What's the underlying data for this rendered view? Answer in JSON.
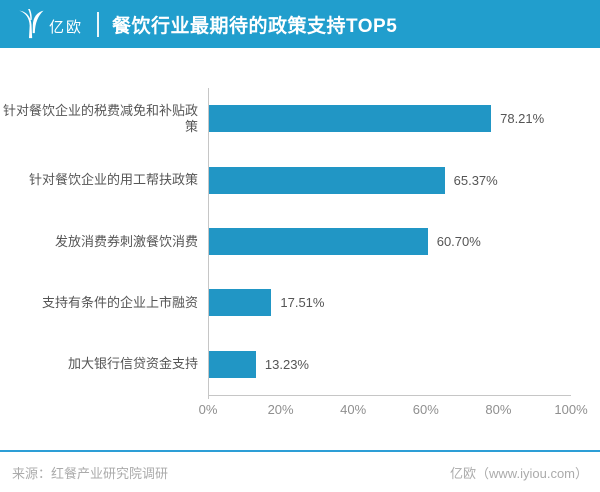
{
  "header": {
    "logo_text": "亿欧",
    "title": "餐饮行业最期待的政策支持TOP5"
  },
  "chart_data": {
    "type": "bar",
    "orientation": "horizontal",
    "title": "餐饮行业最期待的政策支持TOP5",
    "categories": [
      "针对餐饮企业的税费减免和补贴政策",
      "针对餐饮企业的用工帮扶政策",
      "发放消费券刺激餐饮消费",
      "支持有条件的企业上市融资",
      "加大银行信贷资金支持"
    ],
    "values": [
      78.21,
      65.37,
      60.7,
      17.51,
      13.23
    ],
    "value_labels": [
      "78.21%",
      "65.37%",
      "60.70%",
      "17.51%",
      "13.23%"
    ],
    "xlabel": "",
    "ylabel": "",
    "xlim": [
      0,
      100
    ],
    "x_ticks": [
      "0%",
      "20%",
      "40%",
      "60%",
      "80%",
      "100%"
    ],
    "grid": false,
    "legend": false,
    "bar_color": "#2196C5"
  },
  "footer": {
    "source": "来源：红餐产业研究院调研",
    "brand": "亿欧（www.iyiou.com）"
  },
  "colors": {
    "header_bg": "#219ECD",
    "bar": "#2196C5",
    "separator": "#2D9ED6",
    "axis": "#C6C6C6",
    "tick_text": "#8F8F8F",
    "label_text": "#555555",
    "footer_text": "#ABABAB"
  }
}
